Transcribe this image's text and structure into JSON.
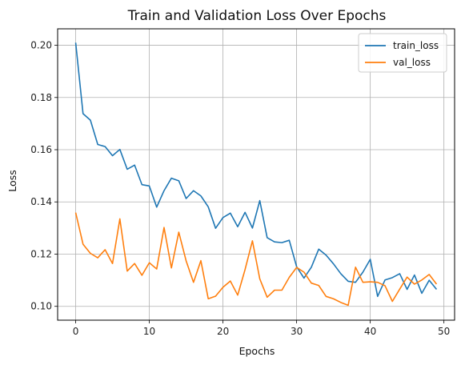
{
  "chart_data": {
    "type": "line",
    "title": "Train and Validation Loss Over Epochs",
    "xlabel": "Epochs",
    "ylabel": "Loss",
    "xlim": [
      -2.45,
      51.45
    ],
    "ylim": [
      0.0947,
      0.2063
    ],
    "xticks": [
      0,
      10,
      20,
      30,
      40,
      50
    ],
    "yticks": [
      0.1,
      0.12,
      0.14,
      0.16,
      0.18,
      0.2
    ],
    "ytick_labels": [
      "0.10",
      "0.12",
      "0.14",
      "0.16",
      "0.18",
      "0.20"
    ],
    "grid": true,
    "legend_position": "top-right",
    "x": [
      0,
      1,
      2,
      3,
      4,
      5,
      6,
      7,
      8,
      9,
      10,
      11,
      12,
      13,
      14,
      15,
      16,
      17,
      18,
      19,
      20,
      21,
      22,
      23,
      24,
      25,
      26,
      27,
      28,
      29,
      30,
      31,
      32,
      33,
      34,
      35,
      36,
      37,
      38,
      39,
      40,
      41,
      42,
      43,
      44,
      45,
      46,
      47,
      48,
      49
    ],
    "series": [
      {
        "name": "train_loss",
        "color": "#1f77b4",
        "values": [
          0.201,
          0.1738,
          0.1713,
          0.162,
          0.1612,
          0.1577,
          0.1601,
          0.1525,
          0.1541,
          0.1466,
          0.1461,
          0.138,
          0.1443,
          0.1491,
          0.1481,
          0.1413,
          0.1443,
          0.1423,
          0.1381,
          0.1299,
          0.134,
          0.1357,
          0.1305,
          0.136,
          0.13,
          0.1405,
          0.1263,
          0.1247,
          0.1244,
          0.1253,
          0.1152,
          0.1108,
          0.115,
          0.1219,
          0.1196,
          0.1163,
          0.1125,
          0.1096,
          0.1092,
          0.1131,
          0.118,
          0.1038,
          0.1101,
          0.111,
          0.1125,
          0.1065,
          0.112,
          0.105,
          0.11,
          0.1065
        ]
      },
      {
        "name": "val_loss",
        "color": "#ff7f0e",
        "values": [
          0.1359,
          0.1238,
          0.1203,
          0.1186,
          0.1217,
          0.1164,
          0.1335,
          0.1135,
          0.1164,
          0.1119,
          0.1167,
          0.1143,
          0.1302,
          0.1147,
          0.1284,
          0.1174,
          0.1092,
          0.1175,
          0.1029,
          0.1039,
          0.1073,
          0.1097,
          0.1043,
          0.1141,
          0.1251,
          0.1105,
          0.1035,
          0.1062,
          0.1062,
          0.1111,
          0.1149,
          0.1131,
          0.1089,
          0.108,
          0.1038,
          0.1029,
          0.1015,
          0.1004,
          0.115,
          0.1092,
          0.1094,
          0.1092,
          0.1079,
          0.1019,
          0.1066,
          0.1112,
          0.1085,
          0.1101,
          0.1122,
          0.1085
        ]
      }
    ]
  }
}
